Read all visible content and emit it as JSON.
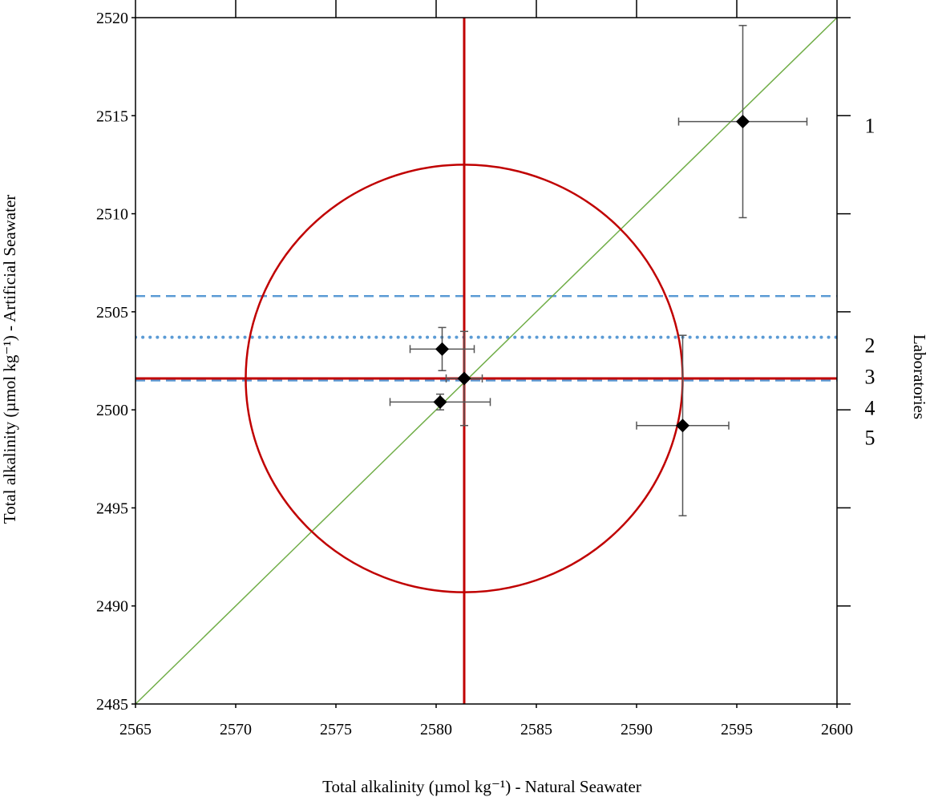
{
  "chart_data": {
    "type": "scatter",
    "xlabel": "Total alkalinity (µmol kg⁻¹) - Natural Seawater",
    "ylabel": "Total alkalinity (µmol kg⁻¹) - Artificial Seawater",
    "right_label": "Laboratories",
    "xlim": [
      2565,
      2600
    ],
    "ylim": [
      2485,
      2520
    ],
    "x_ticks": [
      "2565",
      "2570",
      "2575",
      "2580",
      "2585",
      "2590",
      "2595",
      "2600"
    ],
    "y_ticks": [
      "2485",
      "2490",
      "2495",
      "2500",
      "2505",
      "2510",
      "2515",
      "2520"
    ],
    "grid": false,
    "points": [
      {
        "x": 2595.3,
        "y": 2514.7,
        "x_err": 3.2,
        "y_err": 4.9
      },
      {
        "x": 2580.3,
        "y": 2503.1,
        "x_err": 1.6,
        "y_err": 1.1
      },
      {
        "x": 2581.4,
        "y": 2501.6,
        "x_err": 0.9,
        "y_err": 2.4
      },
      {
        "x": 2580.2,
        "y": 2500.4,
        "x_err": 2.5,
        "y_err": 0.4
      },
      {
        "x": 2592.3,
        "y": 2499.2,
        "x_err": 2.3,
        "y_err": 4.6
      }
    ],
    "lab_labels": [
      {
        "text": "1",
        "y": 2514.5
      },
      {
        "text": "2",
        "y": 2503.3
      },
      {
        "text": "3",
        "y": 2501.7
      },
      {
        "text": "4",
        "y": 2500.1
      },
      {
        "text": "5",
        "y": 2498.6
      }
    ],
    "reference": {
      "center_x": 2581.4,
      "center_y": 2501.6,
      "radius": 10.9,
      "color": "#c00000"
    },
    "horizontal_lines": [
      {
        "y": 2505.8,
        "style": "dashed",
        "color": "#5b9bd5"
      },
      {
        "y": 2503.7,
        "style": "dotted",
        "color": "#5b9bd5"
      },
      {
        "y": 2501.5,
        "style": "dashed",
        "color": "#5b9bd5"
      }
    ],
    "identity_line": {
      "color": "#70ad47"
    },
    "marker_color": "#000000",
    "errorbar_color": "#555555"
  }
}
